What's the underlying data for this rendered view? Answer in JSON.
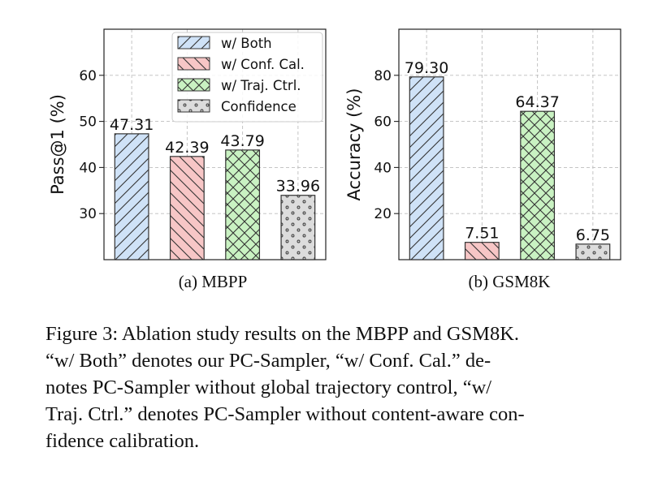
{
  "chart_data": [
    {
      "type": "bar",
      "panel_label": "(a) MBPP",
      "categories": [
        "w/ Both",
        "w/ Conf. Cal.",
        "w/ Traj. Ctrl.",
        "Confidence"
      ],
      "values": [
        47.31,
        42.39,
        43.79,
        33.96
      ],
      "value_labels": [
        "47.31",
        "42.39",
        "43.79",
        "33.96"
      ],
      "xlabel": "",
      "ylabel": "Pass@1 (%)",
      "ylim": [
        20,
        70
      ],
      "yticks": [
        30,
        40,
        50,
        60
      ],
      "ytick_labels": [
        "30",
        "40",
        "50",
        "60"
      ],
      "grid": true,
      "legend": {
        "placement": "top-right",
        "entries": [
          "w/ Both",
          "w/ Conf. Cal.",
          "w/ Traj. Ctrl.",
          "Confidence"
        ]
      }
    },
    {
      "type": "bar",
      "panel_label": "(b) GSM8K",
      "categories": [
        "w/ Both",
        "w/ Conf. Cal.",
        "w/ Traj. Ctrl.",
        "Confidence"
      ],
      "values": [
        79.3,
        7.51,
        64.37,
        6.75
      ],
      "value_labels": [
        "79.30",
        "7.51",
        "64.37",
        "6.75"
      ],
      "xlabel": "",
      "ylabel": "Accuracy (%)",
      "ylim": [
        0,
        100
      ],
      "yticks": [
        20,
        40,
        60,
        80
      ],
      "ytick_labels": [
        "20",
        "40",
        "60",
        "80"
      ],
      "grid": true
    }
  ],
  "series_styles": [
    {
      "fill": "#cfe2f7",
      "stroke": "#333333",
      "hatch": "forward-diagonal"
    },
    {
      "fill": "#f7c6c6",
      "stroke": "#333333",
      "hatch": "backward-diagonal"
    },
    {
      "fill": "#c9f2c2",
      "stroke": "#333333",
      "hatch": "cross"
    },
    {
      "fill": "#dcdcdc",
      "stroke": "#333333",
      "hatch": "dots"
    }
  ],
  "caption": {
    "line1": "Figure 3: Ablation study results on the MBPP and GSM8K.",
    "line2": "“w/ Both” denotes our PC-Sampler, “w/ Conf. Cal.” de-",
    "line3": "notes PC-Sampler without global trajectory control, “w/",
    "line4": "Traj. Ctrl.” denotes PC-Sampler without content-aware con-",
    "line5": "fidence calibration."
  }
}
